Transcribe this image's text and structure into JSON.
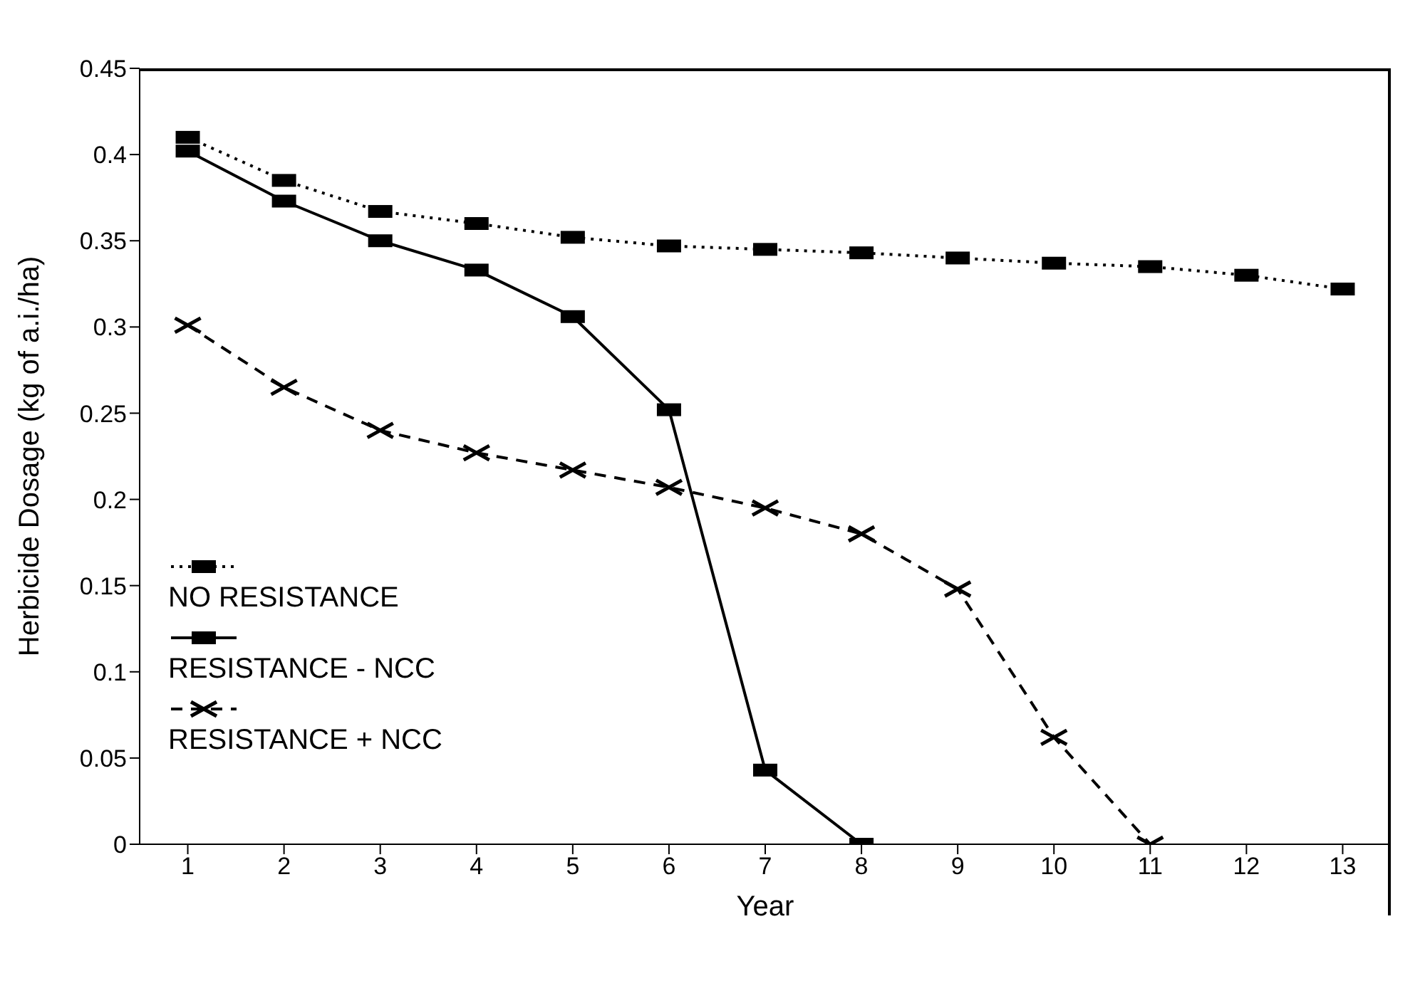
{
  "chart_data": {
    "type": "line",
    "xlabel": "Year",
    "ylabel": "Herbicide Dosage (kg of a.i./ha)",
    "x": [
      1,
      2,
      3,
      4,
      5,
      6,
      7,
      8,
      9,
      10,
      11,
      12,
      13
    ],
    "xlim": [
      0.5,
      13.5
    ],
    "xticks": [
      1,
      2,
      3,
      4,
      5,
      6,
      7,
      8,
      9,
      10,
      11,
      12,
      13
    ],
    "ylim": [
      0,
      0.45
    ],
    "yticks": [
      0,
      0.05,
      0.1,
      0.15,
      0.2,
      0.25,
      0.3,
      0.35,
      0.4,
      0.45
    ],
    "grid": false,
    "legend": "left",
    "series": [
      {
        "name": "NO RESISTANCE",
        "color": "#000000",
        "line_style": "dotted",
        "marker": "square",
        "values": [
          0.41,
          0.385,
          0.367,
          0.36,
          0.352,
          0.347,
          0.345,
          0.343,
          0.34,
          0.337,
          0.335,
          0.33,
          0.322
        ]
      },
      {
        "name": "RESISTANCE - NCC",
        "color": "#000000",
        "line_style": "solid",
        "marker": "square",
        "values": [
          0.402,
          0.373,
          0.35,
          0.333,
          0.306,
          0.252,
          0.043,
          0,
          null,
          null,
          null,
          null,
          null
        ]
      },
      {
        "name": "RESISTANCE + NCC",
        "color": "#000000",
        "line_style": "dashed",
        "marker": "cross",
        "values": [
          0.301,
          0.265,
          0.24,
          0.227,
          0.217,
          0.207,
          0.195,
          0.18,
          0.148,
          0.062,
          0,
          null,
          null
        ]
      }
    ]
  }
}
